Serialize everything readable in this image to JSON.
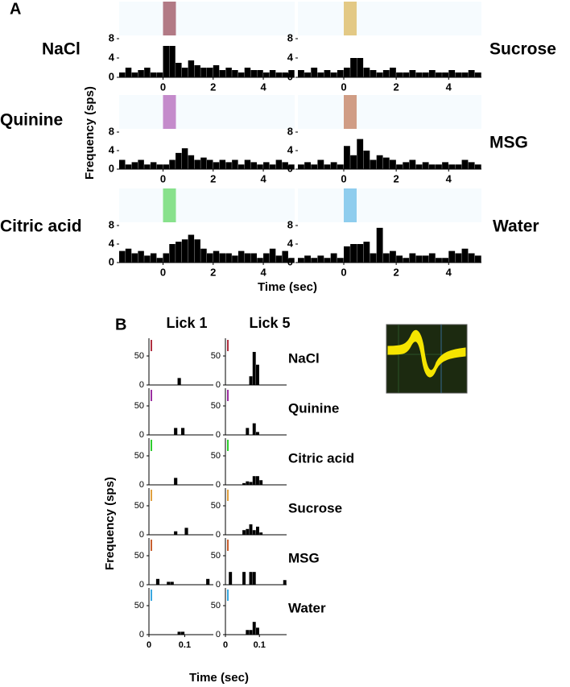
{
  "figure": {
    "panel_a": "A",
    "panel_b": "B",
    "a_y_label": "Frequency (sps)",
    "a_x_label": "Time (sec)",
    "b_y_label": "Frequency (sps)",
    "b_x_label": "Time (sec)",
    "lick_1": "Lick 1",
    "lick_5": "Lick 5"
  },
  "chart_data": [
    {
      "type": "histogram",
      "title": "NaCl",
      "color": "#000000",
      "stim_color": "#7a1020",
      "bins": [
        -1.75,
        -1.5,
        -1.25,
        -1,
        -0.75,
        -0.5,
        -0.25,
        0,
        0.25,
        0.5,
        0.75,
        1,
        1.25,
        1.5,
        1.75,
        2,
        2.25,
        2.5,
        2.75,
        3,
        3.25,
        3.5,
        3.75,
        4,
        4.25,
        4.5,
        4.75,
        5,
        5.25
      ],
      "values": [
        1,
        2,
        1,
        1.5,
        2,
        1,
        1,
        6.5,
        6.5,
        3,
        2,
        3.5,
        2.5,
        2,
        2,
        2.5,
        1.5,
        2,
        1.5,
        1,
        2,
        1.5,
        1.5,
        1,
        1.5,
        1,
        1,
        1.5
      ],
      "xlim": [
        -1.75,
        5.25
      ],
      "ylim": [
        0,
        8
      ],
      "xticks": [
        0,
        2,
        4
      ],
      "yticks": [
        0,
        4,
        8
      ]
    },
    {
      "type": "histogram",
      "title": "Sucrose",
      "color": "#000000",
      "stim_color": "#d4a020",
      "bins": [
        -1.75,
        -1.5,
        -1.25,
        -1,
        -0.75,
        -0.5,
        -0.25,
        0,
        0.25,
        0.5,
        0.75,
        1,
        1.25,
        1.5,
        1.75,
        2,
        2.25,
        2.5,
        2.75,
        3,
        3.25,
        3.5,
        3.75,
        4,
        4.25,
        4.5,
        4.75,
        5,
        5.25
      ],
      "values": [
        1.5,
        1,
        2,
        1,
        1.5,
        1,
        1.5,
        2,
        4,
        4,
        2,
        1.5,
        1,
        1.5,
        2,
        1,
        1,
        1.5,
        1,
        1,
        1.5,
        1,
        1,
        1.5,
        1,
        1,
        1.5,
        1
      ],
      "xlim": [
        -1.75,
        5.25
      ],
      "ylim": [
        0,
        8
      ],
      "xticks": [
        0,
        2,
        4
      ],
      "yticks": [
        0,
        4,
        8
      ]
    },
    {
      "type": "histogram",
      "title": "Quinine",
      "color": "#000000",
      "stim_color": "#9b30a0",
      "bins": [
        -1.75,
        -1.5,
        -1.25,
        -1,
        -0.75,
        -0.5,
        -0.25,
        0,
        0.25,
        0.5,
        0.75,
        1,
        1.25,
        1.5,
        1.75,
        2,
        2.25,
        2.5,
        2.75,
        3,
        3.25,
        3.5,
        3.75,
        4,
        4.25,
        4.5,
        4.75,
        5,
        5.25
      ],
      "values": [
        2,
        1,
        1.5,
        2,
        1,
        1.5,
        1,
        1,
        2,
        3.5,
        4.5,
        3,
        2,
        2.5,
        2,
        1.5,
        2,
        1.5,
        2,
        1,
        2,
        1.5,
        1,
        1.5,
        1,
        2,
        1.5,
        1
      ],
      "xlim": [
        -1.75,
        5.25
      ],
      "ylim": [
        0,
        8
      ],
      "xticks": [
        0,
        2,
        4
      ],
      "yticks": [
        0,
        4,
        8
      ]
    },
    {
      "type": "histogram",
      "title": "MSG",
      "color": "#000000",
      "stim_color": "#b05020",
      "bins": [
        -1.75,
        -1.5,
        -1.25,
        -1,
        -0.75,
        -0.5,
        -0.25,
        0,
        0.25,
        0.5,
        0.75,
        1,
        1.25,
        1.5,
        1.75,
        2,
        2.25,
        2.5,
        2.75,
        3,
        3.25,
        3.5,
        3.75,
        4,
        4.25,
        4.5,
        4.75,
        5,
        5.25
      ],
      "values": [
        1,
        1.5,
        1,
        2,
        1,
        1.5,
        1,
        5,
        3,
        6.5,
        4,
        2,
        3,
        2.5,
        2,
        1,
        1.5,
        2,
        1,
        1.5,
        1,
        1,
        1.5,
        1,
        1,
        2,
        1.5,
        1
      ],
      "xlim": [
        -1.75,
        5.25
      ],
      "ylim": [
        0,
        8
      ],
      "xticks": [
        0,
        2,
        4
      ],
      "yticks": [
        0,
        4,
        8
      ]
    },
    {
      "type": "histogram",
      "title": "Citric acid",
      "color": "#000000",
      "stim_color": "#2ecc2e",
      "bins": [
        -1.75,
        -1.5,
        -1.25,
        -1,
        -0.75,
        -0.5,
        -0.25,
        0,
        0.25,
        0.5,
        0.75,
        1,
        1.25,
        1.5,
        1.75,
        2,
        2.25,
        2.5,
        2.75,
        3,
        3.25,
        3.5,
        3.75,
        4,
        4.25,
        4.5,
        4.75,
        5,
        5.25
      ],
      "values": [
        2.5,
        3,
        2,
        2.5,
        1.5,
        2,
        1,
        2,
        4,
        4.5,
        5,
        6,
        5,
        3,
        2,
        2.5,
        2,
        2,
        1.5,
        2.5,
        2,
        2,
        1,
        2,
        3,
        1.5,
        2.5,
        1
      ],
      "xlim": [
        -1.75,
        5.25
      ],
      "ylim": [
        0,
        8
      ],
      "xticks": [
        0,
        2,
        4
      ],
      "yticks": [
        0,
        4,
        8
      ]
    },
    {
      "type": "histogram",
      "title": "Water",
      "color": "#000000",
      "stim_color": "#3aa8e0",
      "bins": [
        -1.75,
        -1.5,
        -1.25,
        -1,
        -0.75,
        -0.5,
        -0.25,
        0,
        0.25,
        0.5,
        0.75,
        1,
        1.25,
        1.5,
        1.75,
        2,
        2.25,
        2.5,
        2.75,
        3,
        3.25,
        3.5,
        3.75,
        4,
        4.25,
        4.5,
        4.75,
        5,
        5.25
      ],
      "values": [
        1,
        1.5,
        1,
        1.5,
        1,
        2,
        1,
        3.5,
        4,
        4,
        4.5,
        2,
        7.5,
        2,
        2.5,
        1.5,
        1,
        2,
        1.5,
        1.5,
        2,
        1,
        1,
        2.5,
        2,
        3,
        2,
        1.5
      ],
      "xlim": [
        -1.75,
        5.25
      ],
      "ylim": [
        0,
        8
      ],
      "xticks": [
        0,
        2,
        4
      ],
      "yticks": [
        0,
        4,
        8
      ]
    },
    {
      "type": "histogram",
      "color": "#000000",
      "stim_color": "#b03040",
      "bins": [
        0,
        0.01,
        0.02,
        0.03,
        0.04,
        0.05,
        0.06,
        0.07,
        0.08,
        0.09,
        0.1,
        0.11,
        0.12,
        0.13,
        0.14,
        0.15,
        0.16,
        0.17,
        0.18
      ],
      "values": [
        0,
        0,
        0,
        0,
        0,
        0,
        0,
        0,
        12,
        0,
        0,
        0,
        0,
        0,
        0,
        0,
        0,
        0
      ],
      "xlim": [
        0,
        0.18
      ],
      "ylim": [
        0,
        75
      ],
      "yticks": [
        0,
        50
      ]
    },
    {
      "type": "histogram",
      "title": "NaCl",
      "color": "#000000",
      "stim_color": "#b03040",
      "bins": [
        0,
        0.01,
        0.02,
        0.03,
        0.04,
        0.05,
        0.06,
        0.07,
        0.08,
        0.09,
        0.1,
        0.11,
        0.12,
        0.13,
        0.14,
        0.15,
        0.16,
        0.17,
        0.18
      ],
      "values": [
        0,
        0,
        0,
        0,
        0,
        0,
        0,
        15,
        57,
        35,
        0,
        0,
        0,
        0,
        0,
        0,
        0,
        0
      ],
      "xlim": [
        0,
        0.18
      ],
      "ylim": [
        0,
        75
      ],
      "yticks": [
        0,
        50
      ]
    },
    {
      "type": "histogram",
      "color": "#000000",
      "stim_color": "#9b30a0",
      "bins": [
        0,
        0.01,
        0.02,
        0.03,
        0.04,
        0.05,
        0.06,
        0.07,
        0.08,
        0.09,
        0.1,
        0.11,
        0.12,
        0.13,
        0.14,
        0.15,
        0.16,
        0.17,
        0.18
      ],
      "values": [
        0,
        0,
        0,
        0,
        0,
        0,
        0,
        12,
        0,
        12,
        0,
        0,
        0,
        0,
        0,
        0,
        0,
        0
      ],
      "xlim": [
        0,
        0.18
      ],
      "ylim": [
        0,
        75
      ],
      "yticks": [
        0,
        50
      ]
    },
    {
      "type": "histogram",
      "title": "Quinine",
      "color": "#000000",
      "stim_color": "#9b30a0",
      "bins": [
        0,
        0.01,
        0.02,
        0.03,
        0.04,
        0.05,
        0.06,
        0.07,
        0.08,
        0.09,
        0.1,
        0.11,
        0.12,
        0.13,
        0.14,
        0.15,
        0.16,
        0.17,
        0.18
      ],
      "values": [
        0,
        0,
        0,
        0,
        0,
        0,
        12,
        0,
        20,
        5,
        0,
        0,
        0,
        0,
        0,
        0,
        0,
        0
      ],
      "xlim": [
        0,
        0.18
      ],
      "ylim": [
        0,
        75
      ],
      "yticks": [
        0,
        50
      ]
    },
    {
      "type": "histogram",
      "color": "#000000",
      "stim_color": "#2ecc2e",
      "bins": [
        0,
        0.01,
        0.02,
        0.03,
        0.04,
        0.05,
        0.06,
        0.07,
        0.08,
        0.09,
        0.1,
        0.11,
        0.12,
        0.13,
        0.14,
        0.15,
        0.16,
        0.17,
        0.18
      ],
      "values": [
        0,
        0,
        0,
        0,
        0,
        0,
        0,
        12,
        0,
        0,
        0,
        0,
        0,
        0,
        0,
        0,
        0,
        0
      ],
      "xlim": [
        0,
        0.18
      ],
      "ylim": [
        0,
        75
      ],
      "yticks": [
        0,
        50
      ]
    },
    {
      "type": "histogram",
      "title": "Citric acid",
      "color": "#000000",
      "stim_color": "#2ecc2e",
      "bins": [
        0,
        0.01,
        0.02,
        0.03,
        0.04,
        0.05,
        0.06,
        0.07,
        0.08,
        0.09,
        0.1,
        0.11,
        0.12,
        0.13,
        0.14,
        0.15,
        0.16,
        0.17,
        0.18
      ],
      "values": [
        0,
        0,
        0,
        0,
        0,
        3,
        6,
        5,
        15,
        15,
        8,
        0,
        0,
        0,
        0,
        0,
        0,
        0
      ],
      "xlim": [
        0,
        0.18
      ],
      "ylim": [
        0,
        75
      ],
      "yticks": [
        0,
        50
      ]
    },
    {
      "type": "histogram",
      "color": "#000000",
      "stim_color": "#e0a040",
      "bins": [
        0,
        0.01,
        0.02,
        0.03,
        0.04,
        0.05,
        0.06,
        0.07,
        0.08,
        0.09,
        0.1,
        0.11,
        0.12,
        0.13,
        0.14,
        0.15,
        0.16,
        0.17,
        0.18
      ],
      "values": [
        0,
        0,
        0,
        0,
        0,
        0,
        0,
        6,
        0,
        0,
        12,
        0,
        0,
        0,
        0,
        0,
        0,
        0
      ],
      "xlim": [
        0,
        0.18
      ],
      "ylim": [
        0,
        75
      ],
      "yticks": [
        0,
        50
      ]
    },
    {
      "type": "histogram",
      "title": "Sucrose",
      "color": "#000000",
      "stim_color": "#e0a040",
      "bins": [
        0,
        0.01,
        0.02,
        0.03,
        0.04,
        0.05,
        0.06,
        0.07,
        0.08,
        0.09,
        0.1,
        0.11,
        0.12,
        0.13,
        0.14,
        0.15,
        0.16,
        0.17,
        0.18
      ],
      "values": [
        0,
        0,
        0,
        0,
        0,
        8,
        10,
        18,
        8,
        14,
        4,
        0,
        0,
        0,
        0,
        0,
        0,
        0
      ],
      "xlim": [
        0,
        0.18
      ],
      "ylim": [
        0,
        75
      ],
      "yticks": [
        0,
        50
      ]
    },
    {
      "type": "histogram",
      "color": "#000000",
      "stim_color": "#c86030",
      "bins": [
        0,
        0.01,
        0.02,
        0.03,
        0.04,
        0.05,
        0.06,
        0.07,
        0.08,
        0.09,
        0.1,
        0.11,
        0.12,
        0.13,
        0.14,
        0.15,
        0.16,
        0.17,
        0.18
      ],
      "values": [
        0,
        0,
        10,
        0,
        0,
        5,
        5,
        0,
        0,
        0,
        0,
        0,
        0,
        0,
        0,
        0,
        10,
        0
      ],
      "xlim": [
        0,
        0.18
      ],
      "ylim": [
        0,
        75
      ],
      "yticks": [
        0,
        50
      ]
    },
    {
      "type": "histogram",
      "title": "MSG",
      "color": "#000000",
      "stim_color": "#c86030",
      "bins": [
        0,
        0.01,
        0.02,
        0.03,
        0.04,
        0.05,
        0.06,
        0.07,
        0.08,
        0.09,
        0.1,
        0.11,
        0.12,
        0.13,
        0.14,
        0.15,
        0.16,
        0.17,
        0.18
      ],
      "values": [
        0,
        22,
        0,
        0,
        0,
        22,
        0,
        22,
        22,
        0,
        0,
        0,
        0,
        0,
        0,
        0,
        0,
        8
      ],
      "xlim": [
        0,
        0.18
      ],
      "ylim": [
        0,
        75
      ],
      "yticks": [
        0,
        50
      ]
    },
    {
      "type": "histogram",
      "color": "#000000",
      "stim_color": "#3aa8e0",
      "bins": [
        0,
        0.01,
        0.02,
        0.03,
        0.04,
        0.05,
        0.06,
        0.07,
        0.08,
        0.09,
        0.1,
        0.11,
        0.12,
        0.13,
        0.14,
        0.15,
        0.16,
        0.17,
        0.18
      ],
      "values": [
        0,
        0,
        0,
        0,
        0,
        0,
        0,
        0,
        5,
        5,
        0,
        0,
        0,
        0,
        0,
        0,
        0,
        0
      ],
      "xlim": [
        0,
        0.18
      ],
      "ylim": [
        0,
        75
      ],
      "xticks": [
        0,
        0.1
      ],
      "yticks": [
        0,
        50
      ]
    },
    {
      "type": "histogram",
      "title": "Water",
      "color": "#000000",
      "stim_color": "#3aa8e0",
      "bins": [
        0,
        0.01,
        0.02,
        0.03,
        0.04,
        0.05,
        0.06,
        0.07,
        0.08,
        0.09,
        0.1,
        0.11,
        0.12,
        0.13,
        0.14,
        0.15,
        0.16,
        0.17,
        0.18
      ],
      "values": [
        0,
        0,
        0,
        0,
        0,
        0,
        8,
        8,
        22,
        12,
        0,
        0,
        0,
        0,
        0,
        0,
        0,
        0
      ],
      "xlim": [
        0,
        0.18
      ],
      "ylim": [
        0,
        75
      ],
      "xticks": [
        0,
        0.1
      ],
      "yticks": [
        0,
        50
      ]
    }
  ]
}
